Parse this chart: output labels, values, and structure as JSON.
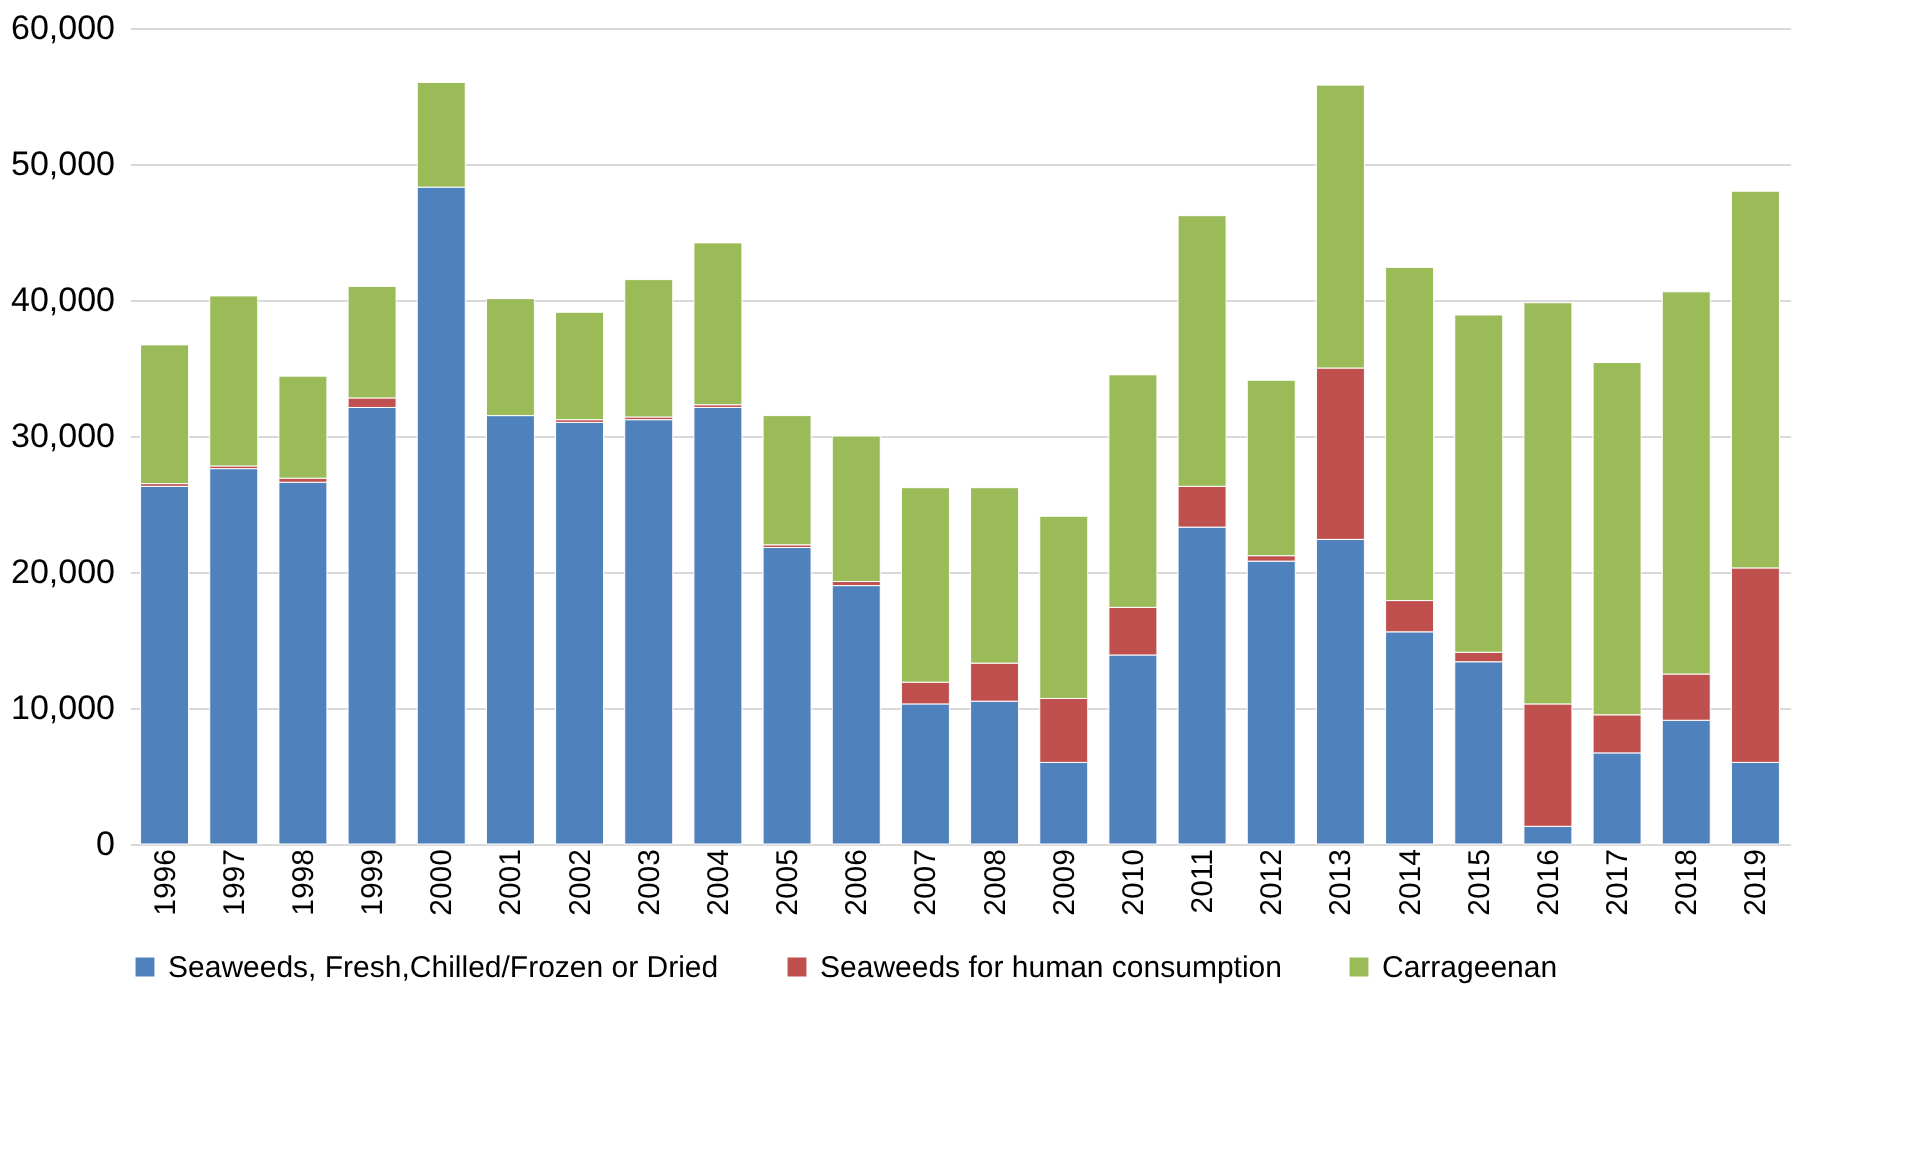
{
  "chart_data": {
    "type": "bar",
    "stacked": true,
    "categories": [
      "1996",
      "1997",
      "1998",
      "1999",
      "2000",
      "2001",
      "2002",
      "2003",
      "2004",
      "2005",
      "2006",
      "2007",
      "2008",
      "2009",
      "2010",
      "2011",
      "2012",
      "2013",
      "2014",
      "2015",
      "2016",
      "2017",
      "2018",
      "2019"
    ],
    "series": [
      {
        "name": "Seaweeds, Fresh,Chilled/Frozen or Dried",
        "color": "#4f81bd",
        "values": [
          26300,
          27600,
          26600,
          32100,
          48300,
          31500,
          31000,
          31200,
          32100,
          21800,
          19000,
          10300,
          10500,
          6000,
          13900,
          23300,
          20800,
          22400,
          15600,
          13400,
          1300,
          6700,
          9100,
          6000
        ]
      },
      {
        "name": "Seaweeds for human consumption",
        "color": "#c0504d",
        "values": [
          200,
          200,
          300,
          700,
          null,
          null,
          200,
          200,
          200,
          200,
          300,
          1600,
          2800,
          4700,
          3500,
          3000,
          400,
          12600,
          2300,
          700,
          9000,
          2800,
          3400,
          14300
        ]
      },
      {
        "name": "Carrageenan",
        "color": "#9bbb59",
        "values": [
          10200,
          12500,
          7500,
          8200,
          7700,
          8600,
          7900,
          10100,
          11900,
          9500,
          10700,
          14300,
          12900,
          13400,
          17100,
          19900,
          12900,
          20800,
          24500,
          24800,
          29500,
          25900,
          28100,
          27700
        ]
      }
    ],
    "ylim": [
      0,
      60000
    ],
    "yticks": [
      {
        "value": 0,
        "label": "0"
      },
      {
        "value": 10000,
        "label": "10,000"
      },
      {
        "value": 20000,
        "label": "20,000"
      },
      {
        "value": 30000,
        "label": "30,000"
      },
      {
        "value": 40000,
        "label": "40,000"
      },
      {
        "value": 50000,
        "label": "50,000"
      },
      {
        "value": 60000,
        "label": "60,000"
      }
    ],
    "grid": "y",
    "legend": "bottom"
  }
}
